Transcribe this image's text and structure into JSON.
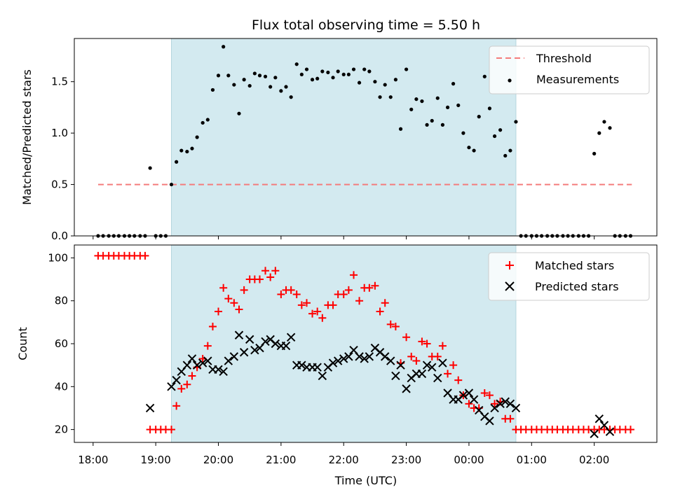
{
  "chart_data": {
    "title": "Flux total observing time = 5.50 h",
    "xlabel": "Time (UTC)",
    "x_tick_labels": [
      "18:00",
      "19:00",
      "20:00",
      "21:00",
      "22:00",
      "23:00",
      "00:00",
      "01:00",
      "02:00"
    ],
    "x_ticks_hours": [
      18,
      19,
      20,
      21,
      22,
      23,
      24,
      25,
      26
    ],
    "xlim_hours": [
      17.7,
      27.0
    ],
    "observing_window_hours": [
      19.25,
      24.75
    ],
    "shade_color": "#d3eaf0",
    "panels": [
      {
        "type": "scatter",
        "ylabel": "Matched/Predicted stars",
        "ylim": [
          0,
          1.92
        ],
        "y_ticks": [
          0.0,
          0.5,
          1.0,
          1.5
        ],
        "y_tick_labels": [
          "0.0",
          "0.5",
          "1.0",
          "1.5"
        ],
        "legend_position": "top-right",
        "threshold": {
          "name": "Threshold",
          "value": 0.5,
          "x_range": [
            18.08,
            26.6
          ],
          "color": "#f47c7c"
        },
        "series": [
          {
            "name": "Measurements",
            "color": "#000000",
            "x": [
              18.08,
              18.16,
              18.25,
              18.33,
              18.41,
              18.5,
              18.58,
              18.66,
              18.75,
              18.83,
              18.91,
              19.0,
              19.08,
              19.16,
              19.25,
              19.33,
              19.41,
              19.5,
              19.58,
              19.66,
              19.75,
              19.83,
              19.91,
              20.0,
              20.08,
              20.16,
              20.25,
              20.33,
              20.41,
              20.5,
              20.58,
              20.66,
              20.75,
              20.83,
              20.91,
              21.0,
              21.08,
              21.16,
              21.25,
              21.33,
              21.41,
              21.5,
              21.58,
              21.66,
              21.75,
              21.83,
              21.91,
              22.0,
              22.08,
              22.16,
              22.25,
              22.33,
              22.41,
              22.5,
              22.58,
              22.66,
              22.75,
              22.83,
              22.91,
              23.0,
              23.08,
              23.16,
              23.25,
              23.33,
              23.41,
              23.5,
              23.58,
              23.66,
              23.75,
              23.83,
              23.91,
              24.0,
              24.08,
              24.16,
              24.25,
              24.33,
              24.41,
              24.5,
              24.58,
              24.66,
              24.75,
              24.83,
              24.91,
              25.0,
              25.08,
              25.16,
              25.25,
              25.33,
              25.41,
              25.5,
              25.58,
              25.66,
              25.75,
              25.83,
              25.91,
              26.0,
              26.08,
              26.16,
              26.25,
              26.33,
              26.41,
              26.5,
              26.58
            ],
            "y": [
              0,
              0,
              0,
              0,
              0,
              0,
              0,
              0,
              0,
              0,
              0.66,
              0,
              0,
              0,
              0.5,
              0.72,
              0.83,
              0.82,
              0.85,
              0.96,
              1.1,
              1.13,
              1.42,
              1.56,
              1.84,
              1.56,
              1.47,
              1.19,
              1.52,
              1.46,
              1.58,
              1.56,
              1.55,
              1.45,
              1.54,
              1.41,
              1.45,
              1.35,
              1.67,
              1.57,
              1.62,
              1.52,
              1.53,
              1.6,
              1.59,
              1.54,
              1.6,
              1.57,
              1.57,
              1.62,
              1.49,
              1.62,
              1.6,
              1.5,
              1.35,
              1.47,
              1.35,
              1.52,
              1.04,
              1.62,
              1.23,
              1.33,
              1.31,
              1.08,
              1.12,
              1.34,
              1.08,
              1.25,
              1.48,
              1.27,
              1.0,
              0.86,
              0.83,
              1.16,
              1.55,
              1.24,
              0.97,
              1.03,
              0.78,
              0.83,
              1.11,
              0,
              0,
              0,
              0,
              0,
              0,
              0,
              0,
              0,
              0,
              0,
              0,
              0,
              0,
              0.8,
              1.0,
              1.11,
              1.05,
              0,
              0,
              0,
              0
            ]
          }
        ]
      },
      {
        "type": "scatter",
        "ylabel": "Count",
        "ylim": [
          14,
          106
        ],
        "y_ticks": [
          20,
          40,
          60,
          80,
          100
        ],
        "y_tick_labels": [
          "20",
          "40",
          "60",
          "80",
          "100"
        ],
        "legend_position": "top-right",
        "series": [
          {
            "name": "Matched stars",
            "color": "#ff0000",
            "marker": "plus",
            "x": [
              18.08,
              18.16,
              18.25,
              18.33,
              18.41,
              18.5,
              18.58,
              18.66,
              18.75,
              18.83,
              18.91,
              19.0,
              19.08,
              19.16,
              19.25,
              19.33,
              19.41,
              19.5,
              19.58,
              19.66,
              19.75,
              19.83,
              19.91,
              20.0,
              20.08,
              20.16,
              20.25,
              20.33,
              20.41,
              20.5,
              20.58,
              20.66,
              20.75,
              20.83,
              20.91,
              21.0,
              21.08,
              21.16,
              21.25,
              21.33,
              21.41,
              21.5,
              21.58,
              21.66,
              21.75,
              21.83,
              21.91,
              22.0,
              22.08,
              22.16,
              22.25,
              22.33,
              22.41,
              22.5,
              22.58,
              22.66,
              22.75,
              22.83,
              22.91,
              23.0,
              23.08,
              23.16,
              23.25,
              23.33,
              23.41,
              23.5,
              23.58,
              23.66,
              23.75,
              23.83,
              23.91,
              24.0,
              24.08,
              24.16,
              24.25,
              24.33,
              24.41,
              24.5,
              24.58,
              24.66,
              24.75,
              24.83,
              24.91,
              25.0,
              25.08,
              25.16,
              25.25,
              25.33,
              25.41,
              25.5,
              25.58,
              25.66,
              25.75,
              25.83,
              25.91,
              26.0,
              26.08,
              26.16,
              26.25,
              26.33,
              26.41,
              26.5,
              26.58
            ],
            "y": [
              101,
              101,
              101,
              101,
              101,
              101,
              101,
              101,
              101,
              101,
              20,
              20,
              20,
              20,
              20,
              31,
              39,
              41,
              45,
              49,
              53,
              59,
              68,
              75,
              86,
              81,
              79,
              76,
              85,
              90,
              90,
              90,
              94,
              91,
              94,
              83,
              85,
              85,
              83,
              78,
              79,
              74,
              75,
              72,
              78,
              78,
              83,
              83,
              85,
              92,
              80,
              86,
              86,
              87,
              75,
              79,
              69,
              68,
              51,
              63,
              54,
              52,
              61,
              60,
              54,
              54,
              59,
              46,
              50,
              43,
              36,
              32,
              30,
              30,
              37,
              36,
              32,
              33,
              25,
              25,
              20,
              20,
              20,
              20,
              20,
              20,
              20,
              20,
              20,
              20,
              20,
              20,
              20,
              20,
              20,
              20,
              20,
              20,
              20,
              20,
              20,
              20,
              20
            ]
          },
          {
            "name": "Predicted stars",
            "color": "#000000",
            "marker": "x",
            "x": [
              18.91,
              19.25,
              19.33,
              19.41,
              19.5,
              19.58,
              19.66,
              19.75,
              19.83,
              19.91,
              20.0,
              20.08,
              20.16,
              20.25,
              20.33,
              20.41,
              20.5,
              20.58,
              20.66,
              20.75,
              20.83,
              20.91,
              21.0,
              21.08,
              21.16,
              21.25,
              21.33,
              21.41,
              21.5,
              21.58,
              21.66,
              21.75,
              21.83,
              21.91,
              22.0,
              22.08,
              22.16,
              22.25,
              22.33,
              22.41,
              22.5,
              22.58,
              22.66,
              22.75,
              22.83,
              22.91,
              23.0,
              23.08,
              23.16,
              23.25,
              23.33,
              23.41,
              23.5,
              23.58,
              23.66,
              23.75,
              23.83,
              23.91,
              24.0,
              24.08,
              24.16,
              24.25,
              24.33,
              24.41,
              24.5,
              24.58,
              24.66,
              24.75,
              26.0,
              26.08,
              26.16,
              26.25
            ],
            "y": [
              30,
              40,
              43,
              47,
              50,
              53,
              50,
              51,
              52,
              48,
              48,
              47,
              52,
              54,
              64,
              56,
              62,
              57,
              58,
              61,
              62,
              60,
              59,
              59,
              63,
              50,
              50,
              49,
              49,
              49,
              45,
              49,
              51,
              52,
              53,
              54,
              57,
              54,
              53,
              54,
              58,
              56,
              54,
              52,
              45,
              50,
              39,
              44,
              46,
              46,
              50,
              49,
              44,
              51,
              37,
              34,
              34,
              36,
              37,
              34,
              29,
              26,
              24,
              30,
              32,
              33,
              32,
              30,
              18,
              25,
              22,
              19
            ]
          }
        ]
      }
    ]
  }
}
